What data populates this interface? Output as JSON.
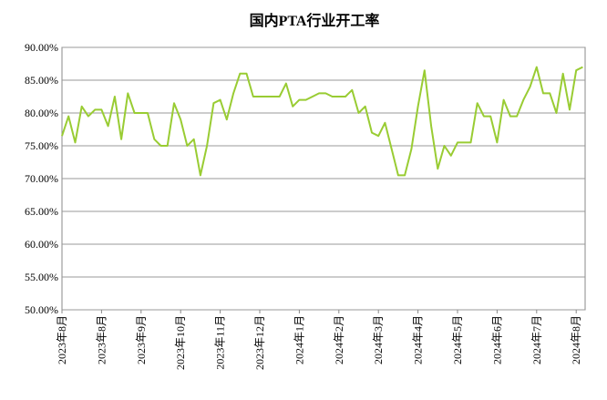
{
  "chart_data": {
    "type": "line",
    "title": "国内PTA行业开工率",
    "categories": [
      "2023年8月",
      null,
      null,
      null,
      null,
      null,
      "2023年8月",
      null,
      null,
      null,
      null,
      null,
      "2023年9月",
      null,
      null,
      null,
      null,
      null,
      "2023年10月",
      null,
      null,
      null,
      null,
      null,
      "2023年11月",
      null,
      null,
      null,
      null,
      null,
      "2023年12月",
      null,
      null,
      null,
      null,
      null,
      "2024年1月",
      null,
      null,
      null,
      null,
      null,
      "2024年2月",
      null,
      null,
      null,
      null,
      null,
      "2024年3月",
      null,
      null,
      null,
      null,
      null,
      "2024年4月",
      null,
      null,
      null,
      null,
      null,
      "2024年5月",
      null,
      null,
      null,
      null,
      null,
      "2024年6月",
      null,
      null,
      null,
      null,
      null,
      "2024年7月",
      null,
      null,
      null,
      null,
      null,
      "2024年8月",
      null
    ],
    "series": [
      {
        "name": "国内PTA行业开工率",
        "color": "#99cc33",
        "values": [
          76.5,
          79.5,
          75.5,
          81,
          79.5,
          80.5,
          80.5,
          78,
          82.5,
          76,
          83,
          80,
          80,
          80,
          76,
          75,
          75,
          81.5,
          79,
          75,
          76,
          70.5,
          75,
          81.5,
          82,
          79,
          83,
          86,
          86,
          82.5,
          82.5,
          82.5,
          82.5,
          82.5,
          84.5,
          81,
          82,
          82,
          82.5,
          83,
          83,
          82.5,
          82.5,
          82.5,
          83.5,
          80,
          81,
          77,
          76.5,
          78.5,
          74.5,
          70.5,
          70.5,
          74.5,
          81,
          86.5,
          78,
          71.5,
          75,
          73.5,
          75.5,
          75.5,
          75.5,
          81.5,
          79.5,
          79.5,
          75.5,
          82,
          79.5,
          79.5,
          82,
          84,
          87,
          83,
          83,
          80,
          86,
          80.5,
          86.5,
          87
        ]
      }
    ],
    "ylim": [
      50,
      90
    ],
    "yticks": [
      {
        "value": 50,
        "label": "50.00%"
      },
      {
        "value": 55,
        "label": "55.00%"
      },
      {
        "value": 60,
        "label": "60.00%"
      },
      {
        "value": 65,
        "label": "65.00%"
      },
      {
        "value": 70,
        "label": "70.00%"
      },
      {
        "value": 75,
        "label": "75.00%"
      },
      {
        "value": 80,
        "label": "80.00%"
      },
      {
        "value": 85,
        "label": "85.00%"
      },
      {
        "value": 90,
        "label": "90.00%"
      }
    ],
    "grid": true
  }
}
